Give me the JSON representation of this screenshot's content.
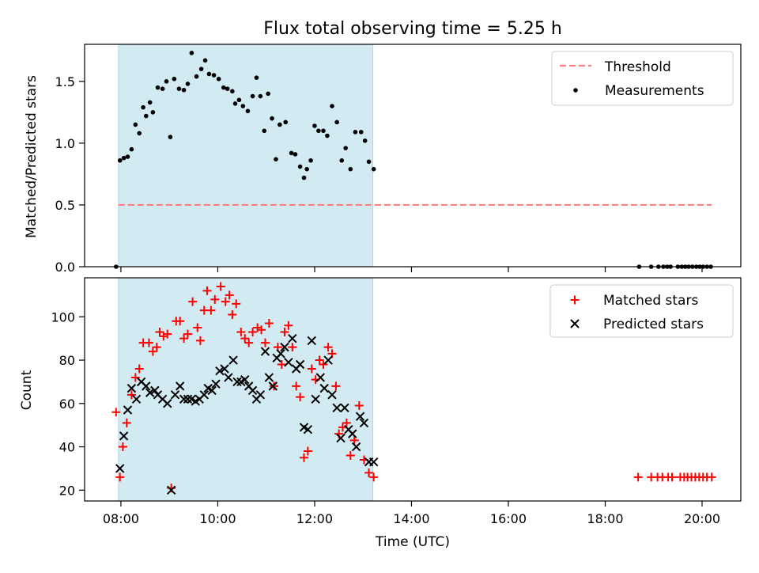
{
  "chart_data": {
    "title": "Flux total observing time = 5.25 h",
    "xlabel": "Time (UTC)",
    "x_unit": "hours UTC",
    "xlim": [
      7.25,
      20.8
    ],
    "x_ticks": [
      {
        "v": 8,
        "label": "08:00"
      },
      {
        "v": 10,
        "label": "10:00"
      },
      {
        "v": 12,
        "label": "12:00"
      },
      {
        "v": 14,
        "label": "14:00"
      },
      {
        "v": 16,
        "label": "16:00"
      },
      {
        "v": 18,
        "label": "18:00"
      },
      {
        "v": 20,
        "label": "20:00"
      }
    ],
    "shaded_interval": [
      7.95,
      13.2
    ],
    "shade_color": "#add8e6",
    "top": {
      "type": "scatter",
      "ylabel": "Matched/Predicted stars",
      "ylim": [
        0,
        1.8
      ],
      "y_ticks": [
        {
          "v": 0,
          "label": "0.0"
        },
        {
          "v": 0.5,
          "label": "0.5"
        },
        {
          "v": 1,
          "label": "1.0"
        },
        {
          "v": 1.5,
          "label": "1.5"
        }
      ],
      "legend": {
        "position": "top-right",
        "threshold_label": "Threshold",
        "measurements_label": "Measurements"
      },
      "threshold": {
        "value": 0.5,
        "x_range": [
          7.95,
          20.2
        ],
        "color": "#ff7f7f"
      },
      "measurements": {
        "color": "#000000",
        "points": [
          [
            7.9,
            0.0
          ],
          [
            7.98,
            0.86
          ],
          [
            8.06,
            0.88
          ],
          [
            8.14,
            0.89
          ],
          [
            8.22,
            0.95
          ],
          [
            8.3,
            1.15
          ],
          [
            8.38,
            1.08
          ],
          [
            8.46,
            1.29
          ],
          [
            8.52,
            1.22
          ],
          [
            8.6,
            1.33
          ],
          [
            8.66,
            1.25
          ],
          [
            8.76,
            1.45
          ],
          [
            8.86,
            1.44
          ],
          [
            8.94,
            1.5
          ],
          [
            9.02,
            1.05
          ],
          [
            9.1,
            1.52
          ],
          [
            9.2,
            1.44
          ],
          [
            9.3,
            1.43
          ],
          [
            9.38,
            1.48
          ],
          [
            9.46,
            1.73
          ],
          [
            9.56,
            1.54
          ],
          [
            9.66,
            1.6
          ],
          [
            9.74,
            1.67
          ],
          [
            9.82,
            1.56
          ],
          [
            9.92,
            1.55
          ],
          [
            10.02,
            1.52
          ],
          [
            10.12,
            1.45
          ],
          [
            10.2,
            1.44
          ],
          [
            10.3,
            1.42
          ],
          [
            10.36,
            1.32
          ],
          [
            10.44,
            1.35
          ],
          [
            10.52,
            1.3
          ],
          [
            10.62,
            1.26
          ],
          [
            10.72,
            1.38
          ],
          [
            10.8,
            1.53
          ],
          [
            10.88,
            1.38
          ],
          [
            10.96,
            1.1
          ],
          [
            11.04,
            1.4
          ],
          [
            11.12,
            1.2
          ],
          [
            11.2,
            0.87
          ],
          [
            11.28,
            1.15
          ],
          [
            11.4,
            1.17
          ],
          [
            11.52,
            0.92
          ],
          [
            11.6,
            0.91
          ],
          [
            11.7,
            0.81
          ],
          [
            11.78,
            0.72
          ],
          [
            11.84,
            0.79
          ],
          [
            11.92,
            0.86
          ],
          [
            12.0,
            1.14
          ],
          [
            12.08,
            1.1
          ],
          [
            12.18,
            1.1
          ],
          [
            12.26,
            1.06
          ],
          [
            12.36,
            1.3
          ],
          [
            12.46,
            1.17
          ],
          [
            12.56,
            0.86
          ],
          [
            12.64,
            0.96
          ],
          [
            12.74,
            0.79
          ],
          [
            12.84,
            1.09
          ],
          [
            12.96,
            1.09
          ],
          [
            13.04,
            1.02
          ],
          [
            13.12,
            0.85
          ],
          [
            13.22,
            0.79
          ],
          [
            18.7,
            0.0
          ],
          [
            18.95,
            0.0
          ],
          [
            19.1,
            0.0
          ],
          [
            19.2,
            0.0
          ],
          [
            19.28,
            0.0
          ],
          [
            19.35,
            0.0
          ],
          [
            19.5,
            0.0
          ],
          [
            19.58,
            0.0
          ],
          [
            19.65,
            0.0
          ],
          [
            19.72,
            0.0
          ],
          [
            19.8,
            0.0
          ],
          [
            19.88,
            0.0
          ],
          [
            19.95,
            0.0
          ],
          [
            20.02,
            0.0
          ],
          [
            20.1,
            0.0
          ],
          [
            20.18,
            0.0
          ]
        ]
      }
    },
    "bottom": {
      "type": "scatter",
      "ylabel": "Count",
      "ylim": [
        15,
        118
      ],
      "y_ticks": [
        {
          "v": 20,
          "label": "20"
        },
        {
          "v": 40,
          "label": "40"
        },
        {
          "v": 60,
          "label": "60"
        },
        {
          "v": 80,
          "label": "80"
        },
        {
          "v": 100,
          "label": "100"
        }
      ],
      "legend": {
        "position": "top-right"
      },
      "series": [
        {
          "name": "Matched stars",
          "marker": "plus",
          "color": "#ff0000",
          "points": [
            [
              7.9,
              56
            ],
            [
              7.98,
              26
            ],
            [
              8.04,
              40
            ],
            [
              8.12,
              51
            ],
            [
              8.22,
              64
            ],
            [
              8.3,
              72
            ],
            [
              8.38,
              76
            ],
            [
              8.46,
              88
            ],
            [
              8.58,
              88
            ],
            [
              8.66,
              84
            ],
            [
              8.74,
              86
            ],
            [
              8.8,
              93
            ],
            [
              8.88,
              91
            ],
            [
              8.96,
              92
            ],
            [
              9.04,
              21
            ],
            [
              9.14,
              98
            ],
            [
              9.22,
              98
            ],
            [
              9.3,
              90
            ],
            [
              9.38,
              92
            ],
            [
              9.48,
              107
            ],
            [
              9.58,
              95
            ],
            [
              9.64,
              89
            ],
            [
              9.72,
              103
            ],
            [
              9.78,
              112
            ],
            [
              9.86,
              103
            ],
            [
              9.94,
              108
            ],
            [
              10.06,
              114
            ],
            [
              10.16,
              107
            ],
            [
              10.24,
              110
            ],
            [
              10.3,
              101
            ],
            [
              10.38,
              106
            ],
            [
              10.48,
              93
            ],
            [
              10.56,
              90
            ],
            [
              10.64,
              88
            ],
            [
              10.72,
              93
            ],
            [
              10.82,
              95
            ],
            [
              10.9,
              94
            ],
            [
              10.98,
              88
            ],
            [
              11.06,
              97
            ],
            [
              11.16,
              68
            ],
            [
              11.24,
              86
            ],
            [
              11.32,
              78
            ],
            [
              11.38,
              93
            ],
            [
              11.46,
              96
            ],
            [
              11.54,
              86
            ],
            [
              11.62,
              68
            ],
            [
              11.7,
              63
            ],
            [
              11.78,
              35
            ],
            [
              11.86,
              38
            ],
            [
              11.94,
              76
            ],
            [
              12.02,
              71
            ],
            [
              12.1,
              80
            ],
            [
              12.18,
              78
            ],
            [
              12.28,
              86
            ],
            [
              12.36,
              83
            ],
            [
              12.44,
              68
            ],
            [
              12.5,
              46
            ],
            [
              12.58,
              49
            ],
            [
              12.66,
              51
            ],
            [
              12.74,
              36
            ],
            [
              12.82,
              43
            ],
            [
              12.92,
              59
            ],
            [
              13.02,
              34
            ],
            [
              13.12,
              28
            ],
            [
              13.22,
              26
            ],
            [
              18.68,
              26
            ],
            [
              18.95,
              26
            ],
            [
              19.08,
              26
            ],
            [
              19.18,
              26
            ],
            [
              19.3,
              26
            ],
            [
              19.38,
              26
            ],
            [
              19.55,
              26
            ],
            [
              19.63,
              26
            ],
            [
              19.7,
              26
            ],
            [
              19.78,
              26
            ],
            [
              19.86,
              26
            ],
            [
              19.94,
              26
            ],
            [
              20.02,
              26
            ],
            [
              20.1,
              26
            ],
            [
              20.2,
              26
            ]
          ]
        },
        {
          "name": "Predicted stars",
          "marker": "x",
          "color": "#000000",
          "points": [
            [
              7.98,
              30
            ],
            [
              8.06,
              45
            ],
            [
              8.14,
              57
            ],
            [
              8.22,
              67
            ],
            [
              8.32,
              62
            ],
            [
              8.42,
              70
            ],
            [
              8.52,
              68
            ],
            [
              8.6,
              65
            ],
            [
              8.7,
              66
            ],
            [
              8.76,
              64
            ],
            [
              8.86,
              62
            ],
            [
              8.96,
              60
            ],
            [
              9.04,
              20
            ],
            [
              9.12,
              64
            ],
            [
              9.22,
              68
            ],
            [
              9.3,
              62
            ],
            [
              9.38,
              62
            ],
            [
              9.46,
              62
            ],
            [
              9.54,
              61
            ],
            [
              9.62,
              62
            ],
            [
              9.72,
              64
            ],
            [
              9.8,
              67
            ],
            [
              9.88,
              66
            ],
            [
              9.96,
              69
            ],
            [
              10.04,
              75
            ],
            [
              10.14,
              76
            ],
            [
              10.22,
              72
            ],
            [
              10.32,
              80
            ],
            [
              10.4,
              70
            ],
            [
              10.48,
              70
            ],
            [
              10.56,
              71
            ],
            [
              10.64,
              68
            ],
            [
              10.72,
              66
            ],
            [
              10.8,
              62
            ],
            [
              10.88,
              64
            ],
            [
              10.98,
              84
            ],
            [
              11.06,
              72
            ],
            [
              11.14,
              68
            ],
            [
              11.22,
              81
            ],
            [
              11.3,
              83
            ],
            [
              11.38,
              86
            ],
            [
              11.46,
              79
            ],
            [
              11.54,
              90
            ],
            [
              11.62,
              76
            ],
            [
              11.7,
              78
            ],
            [
              11.78,
              49
            ],
            [
              11.86,
              48
            ],
            [
              11.94,
              89
            ],
            [
              12.02,
              62
            ],
            [
              12.12,
              72
            ],
            [
              12.2,
              67
            ],
            [
              12.28,
              80
            ],
            [
              12.36,
              64
            ],
            [
              12.46,
              58
            ],
            [
              12.54,
              44
            ],
            [
              12.62,
              58
            ],
            [
              12.7,
              48
            ],
            [
              12.78,
              46
            ],
            [
              12.86,
              40
            ],
            [
              12.94,
              54
            ],
            [
              13.02,
              51
            ],
            [
              13.12,
              33
            ],
            [
              13.22,
              33
            ]
          ]
        }
      ]
    }
  }
}
